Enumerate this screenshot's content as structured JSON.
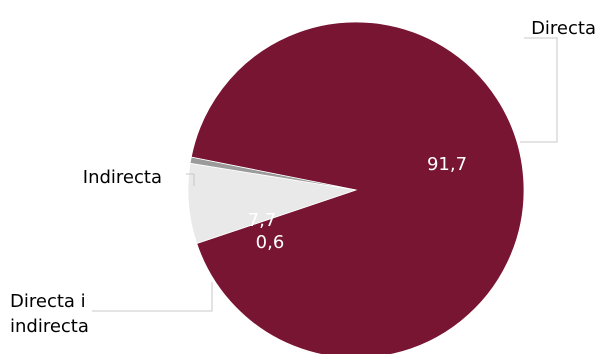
{
  "chart_data": {
    "type": "pie",
    "slices": [
      {
        "label": "Directa",
        "value": 91.7,
        "value_label": "91,7",
        "color": "#781533"
      },
      {
        "label": "Indirecta",
        "value": 7.7,
        "value_label": "7,7",
        "color": "#e9e9ea"
      },
      {
        "label": "Directa i indirecta",
        "label_lines": [
          "Directa i",
          "indirecta"
        ],
        "value": 0.6,
        "value_label": "0,6",
        "color": "#9b9b9b"
      }
    ],
    "leader_line_color": "#c8c8c8",
    "legend": "none"
  }
}
